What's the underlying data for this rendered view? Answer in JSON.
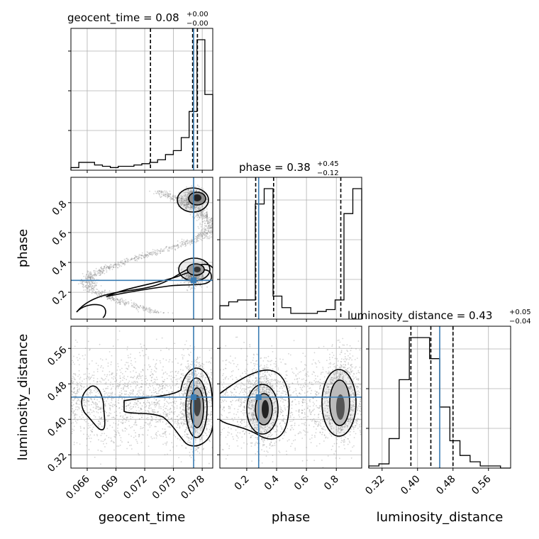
{
  "chart_data": {
    "type": "corner",
    "parameters": [
      "geocent_time",
      "phase",
      "luminosity_distance"
    ],
    "truths": {
      "geocent_time": 0.0771,
      "phase": 0.28,
      "luminosity_distance": 0.45
    },
    "ranges": {
      "geocent_time": [
        0.0643,
        0.0791
      ],
      "phase": [
        0.02,
        0.97
      ],
      "luminosity_distance": [
        0.29,
        0.61
      ]
    },
    "ticks": {
      "geocent_time": [
        "0.066",
        "0.069",
        "0.072",
        "0.075",
        "0.078"
      ],
      "phase": [
        "0.2",
        "0.4",
        "0.6",
        "0.8"
      ],
      "luminosity_distance": [
        "0.32",
        "0.40",
        "0.48",
        "0.56"
      ]
    },
    "titles": {
      "geocent_time": {
        "base": "geocent_time = 0.08",
        "sup": "+0.00",
        "sub": "−0.00"
      },
      "phase": {
        "base": "phase = 0.38",
        "sup": "+0.45",
        "sub": "−0.12"
      },
      "luminosity_distance": {
        "base": "luminosity_distance = 0.43",
        "sup": "+0.05",
        "sub": "−0.04"
      }
    },
    "quantiles": {
      "geocent_time": [
        0.0726,
        0.077,
        0.0775
      ],
      "phase": [
        0.26,
        0.38,
        0.83
      ],
      "luminosity_distance": [
        0.385,
        0.43,
        0.48
      ]
    },
    "histograms": {
      "geocent_time": [
        2,
        6,
        6,
        4,
        3,
        2,
        3,
        3,
        4,
        5,
        6,
        8,
        12,
        15,
        25,
        45,
        100,
        58
      ],
      "phase": [
        7,
        9,
        10,
        10,
        60,
        68,
        12,
        6,
        3,
        3,
        3,
        4,
        5,
        10,
        55,
        68
      ],
      "luminosity_distance": [
        1,
        2,
        14,
        42,
        62,
        62,
        52,
        29,
        13,
        6,
        3,
        1,
        1,
        0
      ]
    },
    "grid": true,
    "truth_color": "#3a7cb3"
  }
}
